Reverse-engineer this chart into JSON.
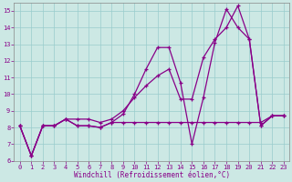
{
  "xlabel": "Windchill (Refroidissement éolien,°C)",
  "bg_color": "#cce8e4",
  "grid_color": "#99cccc",
  "line_color": "#880088",
  "xlim": [
    -0.5,
    23.5
  ],
  "ylim": [
    6.0,
    15.5
  ],
  "yticks": [
    6,
    7,
    8,
    9,
    10,
    11,
    12,
    13,
    14,
    15
  ],
  "xticks": [
    0,
    1,
    2,
    3,
    4,
    5,
    6,
    7,
    8,
    9,
    10,
    11,
    12,
    13,
    14,
    15,
    16,
    17,
    18,
    19,
    20,
    21,
    22,
    23
  ],
  "series_flat": [
    8.1,
    6.3,
    8.1,
    8.1,
    8.5,
    8.1,
    8.1,
    8.0,
    8.3,
    8.3,
    8.3,
    8.3,
    8.3,
    8.3,
    8.3,
    8.3,
    8.3,
    8.3,
    8.3,
    8.3,
    8.3,
    8.3,
    8.7,
    8.7
  ],
  "series_zigzag": [
    8.1,
    6.3,
    8.1,
    8.1,
    8.5,
    8.1,
    8.1,
    8.0,
    8.3,
    8.8,
    10.0,
    11.5,
    12.8,
    12.8,
    10.7,
    7.0,
    9.8,
    13.1,
    15.1,
    14.0,
    13.3,
    8.1,
    8.7,
    8.7
  ],
  "series_trend": [
    8.1,
    6.3,
    8.1,
    8.1,
    8.5,
    8.5,
    8.5,
    8.3,
    8.5,
    9.0,
    9.8,
    10.5,
    11.1,
    11.5,
    9.7,
    9.7,
    12.2,
    13.3,
    14.0,
    15.3,
    13.3,
    8.1,
    8.7,
    8.7
  ]
}
